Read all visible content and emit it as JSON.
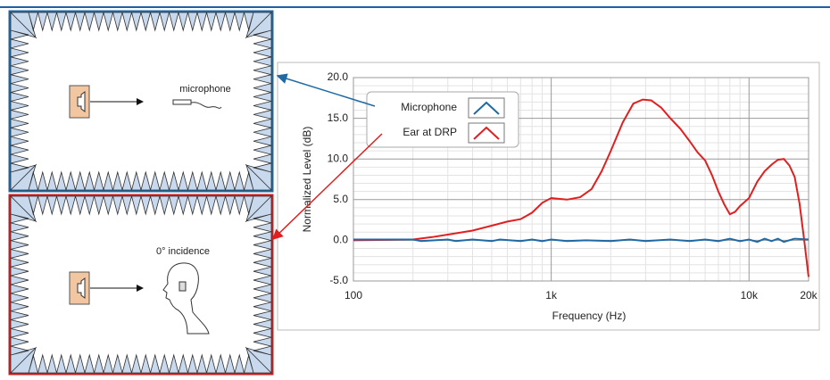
{
  "chart_data": {
    "type": "line",
    "xlabel": "Frequency (Hz)",
    "ylabel": "Normalized Level (dB)",
    "xscale": "log",
    "grid": true,
    "legend": "upper-left",
    "xlim": [
      100,
      20000
    ],
    "xticks": [
      100,
      {
        "value": 1000,
        "label": "1k"
      },
      {
        "value": 10000,
        "label": "10k"
      },
      {
        "value": 20000,
        "label": "20k"
      }
    ],
    "xminorticks": [
      200,
      300,
      400,
      500,
      600,
      700,
      800,
      900,
      2000,
      3000,
      4000,
      5000,
      6000,
      7000,
      8000,
      9000
    ],
    "ylim": [
      -5,
      20
    ],
    "yticks": [
      {
        "value": -5,
        "label": "-5.0"
      },
      {
        "value": 0,
        "label": "0.0"
      },
      {
        "value": 5,
        "label": "5.0"
      },
      {
        "value": 10,
        "label": "10.0"
      },
      {
        "value": 15,
        "label": "15.0"
      },
      {
        "value": 20,
        "label": "20.0"
      }
    ],
    "yminorticks": [
      -4,
      -3,
      -2,
      -1,
      1,
      2,
      3,
      4,
      6,
      7,
      8,
      9,
      11,
      12,
      13,
      14,
      16,
      17,
      18,
      19
    ],
    "series": [
      {
        "name": "Microphone",
        "color": "#1f6aa5",
        "x": [
          100,
          200,
          220,
          300,
          330,
          400,
          500,
          550,
          700,
          800,
          900,
          1000,
          1200,
          1500,
          2000,
          2500,
          3000,
          4000,
          5000,
          6000,
          7000,
          8000,
          9000,
          10000,
          11000,
          12000,
          13000,
          14000,
          15000,
          17000,
          20000
        ],
        "values": [
          0.1,
          0.1,
          -0.1,
          0.1,
          -0.1,
          0.1,
          -0.1,
          0.1,
          -0.1,
          0.1,
          -0.1,
          0.1,
          -0.1,
          0,
          -0.1,
          0.1,
          -0.1,
          0.1,
          -0.1,
          0.1,
          -0.1,
          0.2,
          -0.1,
          0.1,
          -0.2,
          0.2,
          -0.1,
          0.2,
          -0.2,
          0.2,
          0.1
        ]
      },
      {
        "name": "Ear at DRP",
        "color": "#e02020",
        "x": [
          100,
          200,
          250,
          300,
          400,
          500,
          600,
          700,
          800,
          900,
          1000,
          1200,
          1400,
          1600,
          1800,
          2000,
          2300,
          2600,
          2900,
          3200,
          3600,
          4000,
          4500,
          5000,
          5500,
          6000,
          6500,
          7000,
          7500,
          8000,
          8500,
          9000,
          10000,
          11000,
          12000,
          13000,
          14000,
          15000,
          16000,
          17000,
          18000,
          19000,
          20000
        ],
        "values": [
          0,
          0.1,
          0.4,
          0.7,
          1.2,
          1.8,
          2.3,
          2.6,
          3.4,
          4.6,
          5.2,
          5.0,
          5.3,
          6.3,
          8.5,
          11,
          14.5,
          16.8,
          17.3,
          17.2,
          16.3,
          15,
          13.7,
          12.2,
          10.8,
          9.8,
          8,
          6,
          4.4,
          3.2,
          3.5,
          4.2,
          5.2,
          7.2,
          8.5,
          9.3,
          9.9,
          10.0,
          9.2,
          7.8,
          4.5,
          0,
          -4.5
        ]
      }
    ]
  },
  "diagrams": [
    {
      "label": "microphone"
    },
    {
      "label": "0° incidence"
    }
  ]
}
